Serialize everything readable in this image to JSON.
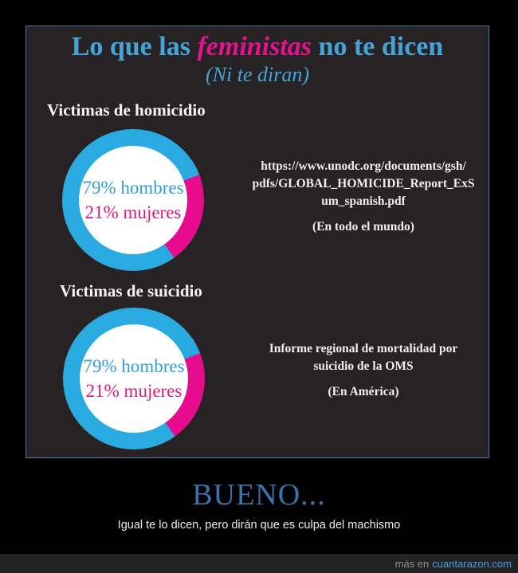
{
  "poster": {
    "title": {
      "part1": "Lo que las ",
      "highlight": "feministas",
      "part2": " no te dicen"
    },
    "subtitle": "(Ni te diran)",
    "sections": [
      {
        "heading": "Victimas de homicidio",
        "source_lines": [
          "https://www.unodc.org/documents/gsh/",
          "pdfs/GLOBAL_HOMICIDE_Report_ExS",
          "um_spanish.pdf"
        ],
        "scope": "(En todo el mundo)"
      },
      {
        "heading": "Victimas de suicidio",
        "source_lines": [
          "Informe regional de mortalidad por",
          "suicidio de la OMS",
          ""
        ],
        "scope": "(En América)"
      }
    ]
  },
  "chart_data": [
    {
      "type": "pie",
      "title": "Victimas de homicidio",
      "donut": true,
      "female_start_deg": 69,
      "slices": [
        {
          "label": "79% hombres",
          "value": 79,
          "color": "#29abe2",
          "text_color": "#2e9fd6"
        },
        {
          "label": "21% mujeres",
          "value": 21,
          "color": "#e60c8d",
          "text_color": "#d81b7c"
        }
      ]
    },
    {
      "type": "pie",
      "title": "Victimas de suicidio",
      "donut": true,
      "female_start_deg": 69,
      "slices": [
        {
          "label": "79% hombres",
          "value": 79,
          "color": "#29abe2",
          "text_color": "#2e9fd6"
        },
        {
          "label": "21% mujeres",
          "value": 21,
          "color": "#e60c8d",
          "text_color": "#d81b7c"
        }
      ]
    }
  ],
  "footer": {
    "headline": "BUENO...",
    "caption": "Igual te lo dicen, pero dirán que es culpa del machismo",
    "watermark_prefix": "más en",
    "watermark_site": "cuantarazon.com"
  },
  "colors": {
    "background": "#000000",
    "box_background": "#272324",
    "box_border": "#4d7aa5",
    "title_blue": "#42a4d9",
    "accent_pink": "#e3128d",
    "donut_blue": "#29abe2",
    "donut_pink": "#e60c8d",
    "heading_white": "#f5f5f5",
    "headline_blue": "#3b74ad",
    "watermark_blue": "#4aa0dc",
    "bar_background": "#232323"
  }
}
